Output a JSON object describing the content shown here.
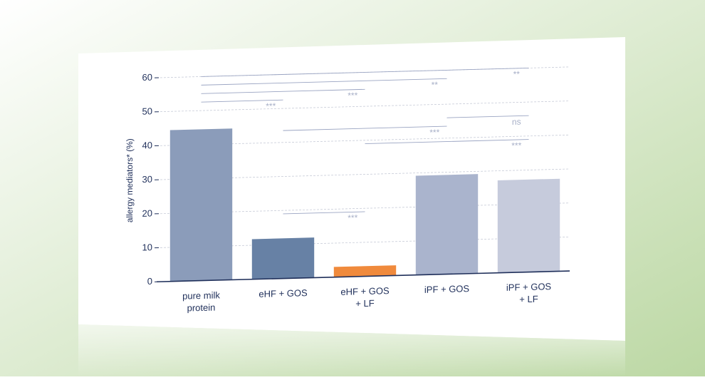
{
  "chart_data": {
    "type": "bar",
    "y_label": "allergy mediators* (%)",
    "categories": [
      [
        "pure milk",
        "protein"
      ],
      [
        "eHF + GOS"
      ],
      [
        "eHF + GOS",
        "+ LF"
      ],
      [
        "iPF + GOS"
      ],
      [
        "iPF + GOS",
        "+ LF"
      ]
    ],
    "values": [
      44.5,
      11.8,
      3.0,
      29.2,
      27.2
    ],
    "colors": [
      "#8b9cba",
      "#6781a5",
      "#f08a3c",
      "#aab4cd",
      "#c6cbdc"
    ],
    "ylim": [
      0,
      65
    ],
    "yticks": [
      0,
      10,
      20,
      30,
      40,
      50,
      60
    ],
    "grid": true,
    "comparisons": [
      {
        "pair": [
          0,
          1
        ],
        "label": "***"
      },
      {
        "pair": [
          0,
          2
        ],
        "label": "***"
      },
      {
        "pair": [
          0,
          3
        ],
        "label": "**"
      },
      {
        "pair": [
          0,
          4
        ],
        "label": "**"
      },
      {
        "pair": [
          3,
          4
        ],
        "label": "ns"
      },
      {
        "pair": [
          1,
          3
        ],
        "label": "***"
      },
      {
        "pair": [
          2,
          4
        ],
        "label": "***"
      },
      {
        "pair": [
          1,
          2
        ],
        "label": "***"
      }
    ]
  }
}
